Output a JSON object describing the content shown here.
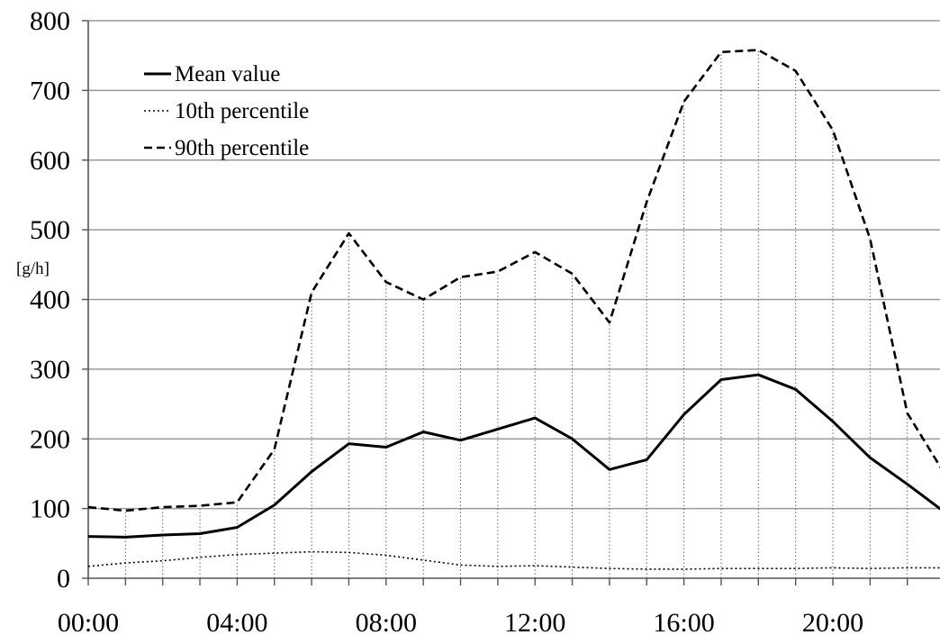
{
  "chart_data": {
    "type": "line",
    "title": "",
    "xlabel": "",
    "ylabel": "[g/h]",
    "ylim": [
      0,
      800
    ],
    "yticks": [
      0,
      100,
      200,
      300,
      400,
      500,
      600,
      700,
      800
    ],
    "x": [
      0,
      1,
      2,
      3,
      4,
      5,
      6,
      7,
      8,
      9,
      10,
      11,
      12,
      13,
      14,
      15,
      16,
      17,
      18,
      19,
      20,
      21,
      22,
      23
    ],
    "xtick_labels": [
      {
        "hour": 0,
        "label": "00:00"
      },
      {
        "hour": 4,
        "label": "04:00"
      },
      {
        "hour": 8,
        "label": "08:00"
      },
      {
        "hour": 12,
        "label": "12:00"
      },
      {
        "hour": 16,
        "label": "16:00"
      },
      {
        "hour": 20,
        "label": "20:00"
      }
    ],
    "grid": "horizontal lines at y ticks; dotted vertical lines at each hour from axis up to the 90th percentile curve",
    "legend_position": "top-left",
    "series": [
      {
        "name": "Mean value",
        "style": "solid",
        "values": [
          60,
          59,
          62,
          64,
          73,
          105,
          153,
          193,
          188,
          210,
          198,
          214,
          230,
          200,
          156,
          170,
          235,
          285,
          292,
          271,
          225,
          173,
          135,
          95
        ]
      },
      {
        "name": "10th percentile",
        "style": "dotted",
        "values": [
          17,
          22,
          25,
          30,
          34,
          36,
          38,
          37,
          33,
          26,
          19,
          17,
          18,
          16,
          14,
          13,
          13,
          14,
          14,
          14,
          15,
          14,
          15,
          15
        ]
      },
      {
        "name": "90th percentile",
        "style": "dashed",
        "values": [
          102,
          97,
          102,
          104,
          109,
          185,
          410,
          495,
          425,
          400,
          432,
          440,
          468,
          437,
          367,
          540,
          684,
          755,
          758,
          728,
          643,
          487,
          237,
          150
        ]
      }
    ]
  },
  "colors": {
    "line": "#000000",
    "grid": "#999999",
    "background": "#ffffff"
  }
}
